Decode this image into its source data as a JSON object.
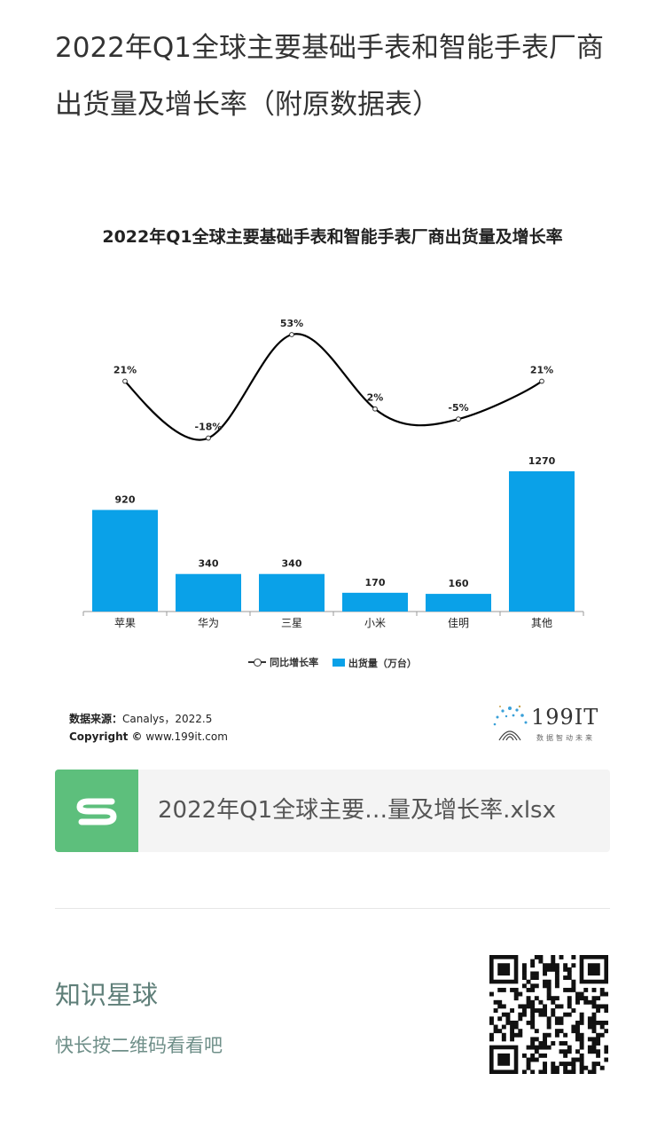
{
  "page": {
    "title": "2022年Q1全球主要基础手表和智能手表厂商出货量及增长率（附原数据表）"
  },
  "chart_data": {
    "type": "bar",
    "title": "2022年Q1全球主要基础手表和智能手表厂商出货量及增长率",
    "categories": [
      "苹果",
      "华为",
      "三星",
      "小米",
      "佳明",
      "其他"
    ],
    "series": [
      {
        "name": "出货量（万台）",
        "type": "bar",
        "values": [
          920,
          340,
          340,
          170,
          160,
          1270
        ],
        "labels": [
          "920",
          "340",
          "340",
          "170",
          "160",
          "1270"
        ]
      },
      {
        "name": "同比增长率",
        "type": "line",
        "values": [
          21,
          -18,
          53,
          2,
          -5,
          21
        ],
        "labels": [
          "21%",
          "-18%",
          "53%",
          "2%",
          "-5%",
          "21%"
        ]
      }
    ],
    "ylim": [
      0,
      1400
    ],
    "ylim_secondary": [
      -30,
      60
    ],
    "grid": false,
    "legend_position": "bottom",
    "colors": {
      "bar": "#0aa1e8",
      "line": "#000000"
    }
  },
  "source": {
    "label": "数据来源：",
    "value": "Canalys，2022.5",
    "copyright_label": "Copyright ©",
    "copyright_value": " www.199it.com"
  },
  "brand": {
    "name": "199IT",
    "slogan": "数据智动未来"
  },
  "file": {
    "icon": "spreadsheet-icon",
    "name": "2022年Q1全球主要…量及增长率.xlsx",
    "accent": "#5dbf7c"
  },
  "promo": {
    "title": "知识星球",
    "subtitle": "快长按二维码看看吧",
    "qr": "qr-code-icon"
  }
}
